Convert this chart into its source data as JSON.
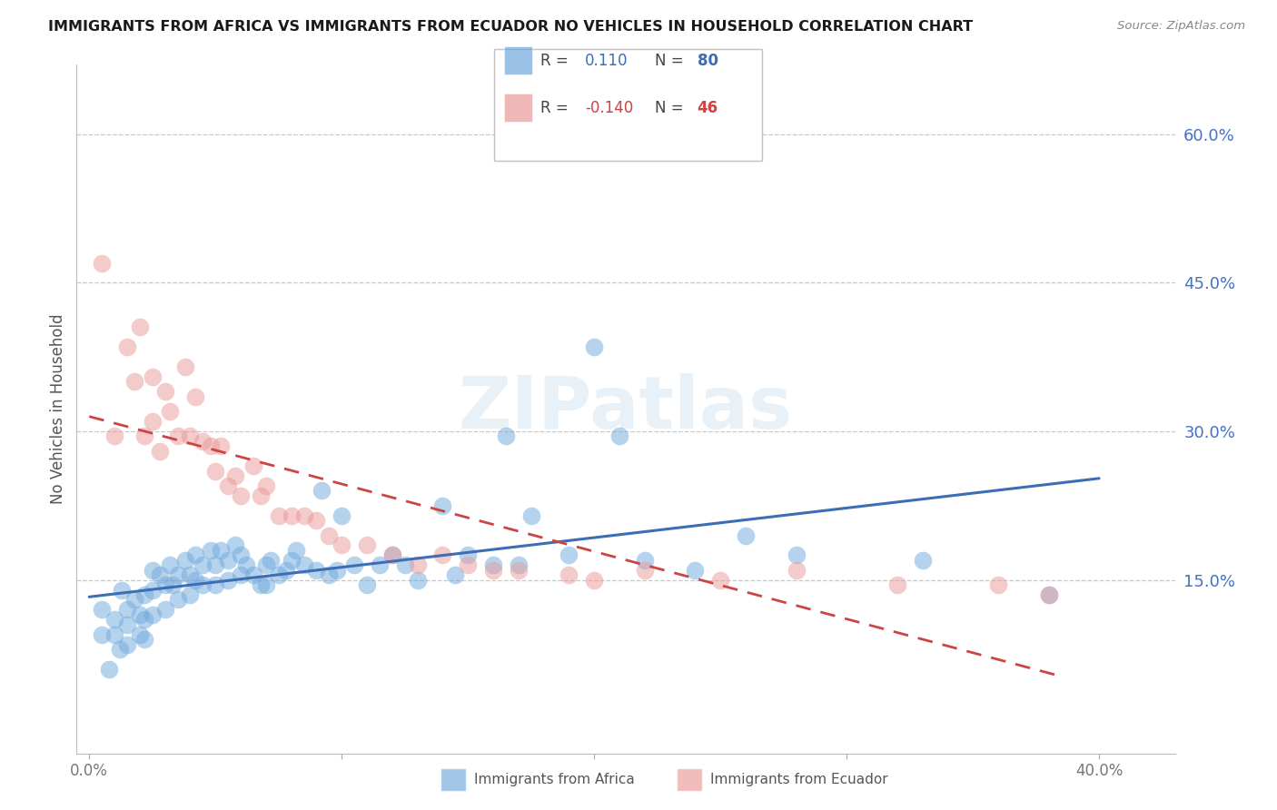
{
  "title": "IMMIGRANTS FROM AFRICA VS IMMIGRANTS FROM ECUADOR NO VEHICLES IN HOUSEHOLD CORRELATION CHART",
  "source": "Source: ZipAtlas.com",
  "ylabel": "No Vehicles in Household",
  "y_ticks_right": [
    "60.0%",
    "45.0%",
    "30.0%",
    "15.0%"
  ],
  "y_tick_vals": [
    0.6,
    0.45,
    0.3,
    0.15
  ],
  "xlim": [
    -0.005,
    0.43
  ],
  "ylim": [
    -0.025,
    0.67
  ],
  "legend_africa_r": "0.110",
  "legend_africa_n": "80",
  "legend_ecuador_r": "-0.140",
  "legend_ecuador_n": "46",
  "color_africa": "#6fa8dc",
  "color_ecuador": "#ea9999",
  "color_africa_line": "#3d6eb5",
  "color_ecuador_line": "#cc4444",
  "color_right_axis": "#4472c4",
  "watermark": "ZIPatlas",
  "africa_x": [
    0.005,
    0.005,
    0.008,
    0.01,
    0.01,
    0.012,
    0.013,
    0.015,
    0.015,
    0.015,
    0.018,
    0.02,
    0.02,
    0.022,
    0.022,
    0.022,
    0.025,
    0.025,
    0.025,
    0.028,
    0.03,
    0.03,
    0.032,
    0.033,
    0.035,
    0.035,
    0.038,
    0.04,
    0.04,
    0.042,
    0.042,
    0.045,
    0.045,
    0.048,
    0.05,
    0.05,
    0.052,
    0.055,
    0.055,
    0.058,
    0.06,
    0.06,
    0.062,
    0.065,
    0.068,
    0.07,
    0.07,
    0.072,
    0.075,
    0.078,
    0.08,
    0.082,
    0.085,
    0.09,
    0.092,
    0.095,
    0.098,
    0.1,
    0.105,
    0.11,
    0.115,
    0.12,
    0.125,
    0.13,
    0.14,
    0.145,
    0.15,
    0.16,
    0.165,
    0.17,
    0.175,
    0.19,
    0.2,
    0.21,
    0.22,
    0.24,
    0.26,
    0.28,
    0.33,
    0.38
  ],
  "africa_y": [
    0.12,
    0.095,
    0.06,
    0.11,
    0.095,
    0.08,
    0.14,
    0.12,
    0.105,
    0.085,
    0.13,
    0.115,
    0.095,
    0.135,
    0.11,
    0.09,
    0.16,
    0.14,
    0.115,
    0.155,
    0.145,
    0.12,
    0.165,
    0.145,
    0.155,
    0.13,
    0.17,
    0.155,
    0.135,
    0.175,
    0.15,
    0.165,
    0.145,
    0.18,
    0.165,
    0.145,
    0.18,
    0.17,
    0.15,
    0.185,
    0.175,
    0.155,
    0.165,
    0.155,
    0.145,
    0.165,
    0.145,
    0.17,
    0.155,
    0.16,
    0.17,
    0.18,
    0.165,
    0.16,
    0.24,
    0.155,
    0.16,
    0.215,
    0.165,
    0.145,
    0.165,
    0.175,
    0.165,
    0.15,
    0.225,
    0.155,
    0.175,
    0.165,
    0.295,
    0.165,
    0.215,
    0.175,
    0.385,
    0.295,
    0.17,
    0.16,
    0.195,
    0.175,
    0.17,
    0.135
  ],
  "ecuador_x": [
    0.005,
    0.01,
    0.015,
    0.018,
    0.02,
    0.022,
    0.025,
    0.025,
    0.028,
    0.03,
    0.032,
    0.035,
    0.038,
    0.04,
    0.042,
    0.045,
    0.048,
    0.05,
    0.052,
    0.055,
    0.058,
    0.06,
    0.065,
    0.068,
    0.07,
    0.075,
    0.08,
    0.085,
    0.09,
    0.095,
    0.1,
    0.11,
    0.12,
    0.13,
    0.14,
    0.15,
    0.16,
    0.17,
    0.19,
    0.2,
    0.22,
    0.25,
    0.28,
    0.32,
    0.36,
    0.38
  ],
  "ecuador_y": [
    0.47,
    0.295,
    0.385,
    0.35,
    0.405,
    0.295,
    0.31,
    0.355,
    0.28,
    0.34,
    0.32,
    0.295,
    0.365,
    0.295,
    0.335,
    0.29,
    0.285,
    0.26,
    0.285,
    0.245,
    0.255,
    0.235,
    0.265,
    0.235,
    0.245,
    0.215,
    0.215,
    0.215,
    0.21,
    0.195,
    0.185,
    0.185,
    0.175,
    0.165,
    0.175,
    0.165,
    0.16,
    0.16,
    0.155,
    0.15,
    0.16,
    0.15,
    0.16,
    0.145,
    0.145,
    0.135
  ]
}
